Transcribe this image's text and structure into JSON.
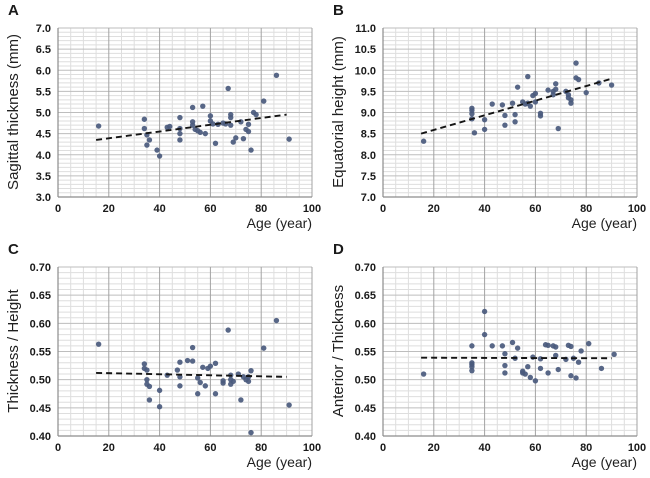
{
  "figure": {
    "background": "#ffffff",
    "marker_color": "#4a5a7d",
    "trend_color": "#141414",
    "grid_minor_color": "#dedede",
    "grid_major_h_color": "#bdbdbd",
    "grid_major_v_color": "#a3a3a3",
    "axis_color": "#8c8c8c",
    "text_color": "#1a1a1a"
  },
  "chart_data": [
    {
      "type": "scatter",
      "panel": "A",
      "xlabel": "Age (year)",
      "ylabel": "Sagittal thickness (mm)",
      "xlim": [
        0,
        100
      ],
      "ylim": [
        3.0,
        7.0
      ],
      "xtick_step": 20,
      "ytick_step": 0.5,
      "x_minor_step": 5,
      "y_minor_step": 0.1,
      "y_decimals": 1,
      "trend": [
        [
          15,
          4.35
        ],
        [
          90,
          4.95
        ]
      ],
      "points": [
        [
          16,
          4.68
        ],
        [
          34,
          4.84
        ],
        [
          34,
          4.62
        ],
        [
          35,
          4.47
        ],
        [
          35,
          4.23
        ],
        [
          36,
          4.35
        ],
        [
          39,
          4.11
        ],
        [
          40,
          3.97
        ],
        [
          43,
          4.65
        ],
        [
          44,
          4.67
        ],
        [
          48,
          4.88
        ],
        [
          48,
          4.62
        ],
        [
          48,
          4.5
        ],
        [
          48,
          4.35
        ],
        [
          53,
          5.12
        ],
        [
          53,
          4.78
        ],
        [
          53,
          4.7
        ],
        [
          54,
          4.6
        ],
        [
          55,
          4.57
        ],
        [
          56,
          4.53
        ],
        [
          57,
          5.15
        ],
        [
          58,
          4.5
        ],
        [
          60,
          4.92
        ],
        [
          60,
          4.8
        ],
        [
          61,
          4.73
        ],
        [
          62,
          4.27
        ],
        [
          63,
          4.72
        ],
        [
          65,
          4.75
        ],
        [
          66,
          4.73
        ],
        [
          67,
          5.57
        ],
        [
          68,
          4.95
        ],
        [
          68,
          4.88
        ],
        [
          68,
          4.7
        ],
        [
          69,
          4.3
        ],
        [
          70,
          4.4
        ],
        [
          72,
          4.78
        ],
        [
          73,
          4.38
        ],
        [
          74,
          4.6
        ],
        [
          75,
          4.72
        ],
        [
          75,
          4.55
        ],
        [
          76,
          4.11
        ],
        [
          77,
          5.0
        ],
        [
          78,
          4.95
        ],
        [
          81,
          5.27
        ],
        [
          86,
          5.88
        ],
        [
          91,
          4.37
        ]
      ]
    },
    {
      "type": "scatter",
      "panel": "B",
      "xlabel": "Age (year)",
      "ylabel": "Equatorial height (mm)",
      "xlim": [
        0,
        100
      ],
      "ylim": [
        7.0,
        11.0
      ],
      "xtick_step": 20,
      "ytick_step": 0.5,
      "x_minor_step": 5,
      "y_minor_step": 0.1,
      "y_decimals": 1,
      "trend": [
        [
          15,
          8.5
        ],
        [
          90,
          9.8
        ]
      ],
      "points": [
        [
          16,
          8.32
        ],
        [
          35,
          9.1
        ],
        [
          35,
          9.05
        ],
        [
          35,
          8.97
        ],
        [
          35,
          8.85
        ],
        [
          36,
          8.52
        ],
        [
          40,
          8.83
        ],
        [
          40,
          8.6
        ],
        [
          43,
          9.2
        ],
        [
          47,
          9.18
        ],
        [
          48,
          8.93
        ],
        [
          48,
          8.7
        ],
        [
          51,
          9.22
        ],
        [
          52,
          8.95
        ],
        [
          52,
          8.78
        ],
        [
          53,
          9.6
        ],
        [
          55,
          9.25
        ],
        [
          56,
          9.2
        ],
        [
          57,
          9.85
        ],
        [
          57,
          9.22
        ],
        [
          58,
          9.15
        ],
        [
          59,
          9.4
        ],
        [
          60,
          9.45
        ],
        [
          60,
          9.25
        ],
        [
          62,
          8.98
        ],
        [
          62,
          8.92
        ],
        [
          65,
          9.53
        ],
        [
          67,
          9.5
        ],
        [
          67,
          9.42
        ],
        [
          68,
          9.68
        ],
        [
          68,
          9.55
        ],
        [
          69,
          8.62
        ],
        [
          72,
          9.5
        ],
        [
          73,
          9.42
        ],
        [
          73,
          9.35
        ],
        [
          74,
          9.3
        ],
        [
          74,
          9.22
        ],
        [
          76,
          10.17
        ],
        [
          76,
          9.82
        ],
        [
          77,
          9.78
        ],
        [
          80,
          9.47
        ],
        [
          85,
          9.7
        ],
        [
          90,
          9.65
        ]
      ]
    },
    {
      "type": "scatter",
      "panel": "C",
      "xlabel": "Age (year)",
      "ylabel": "Thickness / Height",
      "xlim": [
        0,
        100
      ],
      "ylim": [
        0.4,
        0.7
      ],
      "xtick_step": 20,
      "ytick_step": 0.05,
      "x_minor_step": 5,
      "y_minor_step": 0.01,
      "y_decimals": 2,
      "trend": [
        [
          15,
          0.512
        ],
        [
          90,
          0.505
        ]
      ],
      "points": [
        [
          16,
          0.563
        ],
        [
          34,
          0.528
        ],
        [
          34,
          0.52
        ],
        [
          35,
          0.517
        ],
        [
          35,
          0.5
        ],
        [
          35,
          0.492
        ],
        [
          36,
          0.488
        ],
        [
          36,
          0.464
        ],
        [
          40,
          0.481
        ],
        [
          40,
          0.452
        ],
        [
          43,
          0.508
        ],
        [
          47,
          0.517
        ],
        [
          48,
          0.531
        ],
        [
          48,
          0.505
        ],
        [
          48,
          0.489
        ],
        [
          51,
          0.534
        ],
        [
          53,
          0.557
        ],
        [
          53,
          0.533
        ],
        [
          55,
          0.503
        ],
        [
          55,
          0.475
        ],
        [
          56,
          0.495
        ],
        [
          57,
          0.522
        ],
        [
          58,
          0.489
        ],
        [
          59,
          0.52
        ],
        [
          60,
          0.524
        ],
        [
          62,
          0.529
        ],
        [
          62,
          0.475
        ],
        [
          65,
          0.498
        ],
        [
          65,
          0.494
        ],
        [
          67,
          0.588
        ],
        [
          68,
          0.508
        ],
        [
          68,
          0.5
        ],
        [
          68,
          0.492
        ],
        [
          69,
          0.497
        ],
        [
          71,
          0.51
        ],
        [
          72,
          0.464
        ],
        [
          73,
          0.505
        ],
        [
          74,
          0.5
        ],
        [
          75,
          0.505
        ],
        [
          75,
          0.497
        ],
        [
          76,
          0.516
        ],
        [
          76,
          0.406
        ],
        [
          81,
          0.556
        ],
        [
          86,
          0.605
        ],
        [
          91,
          0.455
        ]
      ]
    },
    {
      "type": "scatter",
      "panel": "D",
      "xlabel": "Age (year)",
      "ylabel": "Anterior / Thickness",
      "xlim": [
        0,
        100
      ],
      "ylim": [
        0.4,
        0.7
      ],
      "xtick_step": 20,
      "ytick_step": 0.05,
      "x_minor_step": 5,
      "y_minor_step": 0.01,
      "y_decimals": 2,
      "trend": [
        [
          15,
          0.539
        ],
        [
          90,
          0.538
        ]
      ],
      "points": [
        [
          16,
          0.51
        ],
        [
          35,
          0.56
        ],
        [
          35,
          0.53
        ],
        [
          35,
          0.527
        ],
        [
          35,
          0.523
        ],
        [
          35,
          0.516
        ],
        [
          40,
          0.621
        ],
        [
          40,
          0.58
        ],
        [
          43,
          0.56
        ],
        [
          47,
          0.56
        ],
        [
          48,
          0.546
        ],
        [
          48,
          0.525
        ],
        [
          48,
          0.512
        ],
        [
          51,
          0.566
        ],
        [
          52,
          0.538
        ],
        [
          53,
          0.556
        ],
        [
          55,
          0.515
        ],
        [
          55,
          0.512
        ],
        [
          56,
          0.51
        ],
        [
          57,
          0.523
        ],
        [
          58,
          0.504
        ],
        [
          59,
          0.54
        ],
        [
          60,
          0.498
        ],
        [
          62,
          0.537
        ],
        [
          62,
          0.52
        ],
        [
          64,
          0.562
        ],
        [
          65,
          0.561
        ],
        [
          65,
          0.512
        ],
        [
          67,
          0.56
        ],
        [
          68,
          0.558
        ],
        [
          68,
          0.543
        ],
        [
          69,
          0.518
        ],
        [
          72,
          0.536
        ],
        [
          73,
          0.561
        ],
        [
          74,
          0.559
        ],
        [
          74,
          0.507
        ],
        [
          75,
          0.538
        ],
        [
          76,
          0.503
        ],
        [
          77,
          0.531
        ],
        [
          78,
          0.551
        ],
        [
          81,
          0.564
        ],
        [
          86,
          0.52
        ],
        [
          91,
          0.545
        ]
      ]
    }
  ]
}
